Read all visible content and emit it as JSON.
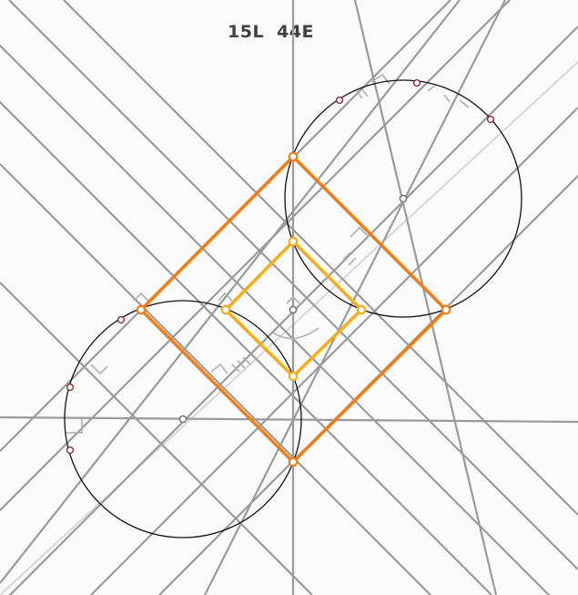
{
  "score": {
    "lines": "15L",
    "elements": "44E"
  },
  "colors": {
    "background": "#fafafa",
    "construction_line": "#9a9a9a",
    "faint_line": "#d7d7d7",
    "circle": "#111111",
    "outer_square": "#f07d16",
    "inner_square": "#f5ae1a",
    "intersection_point": "#8b1a1a",
    "center_point": "#777777"
  }
}
